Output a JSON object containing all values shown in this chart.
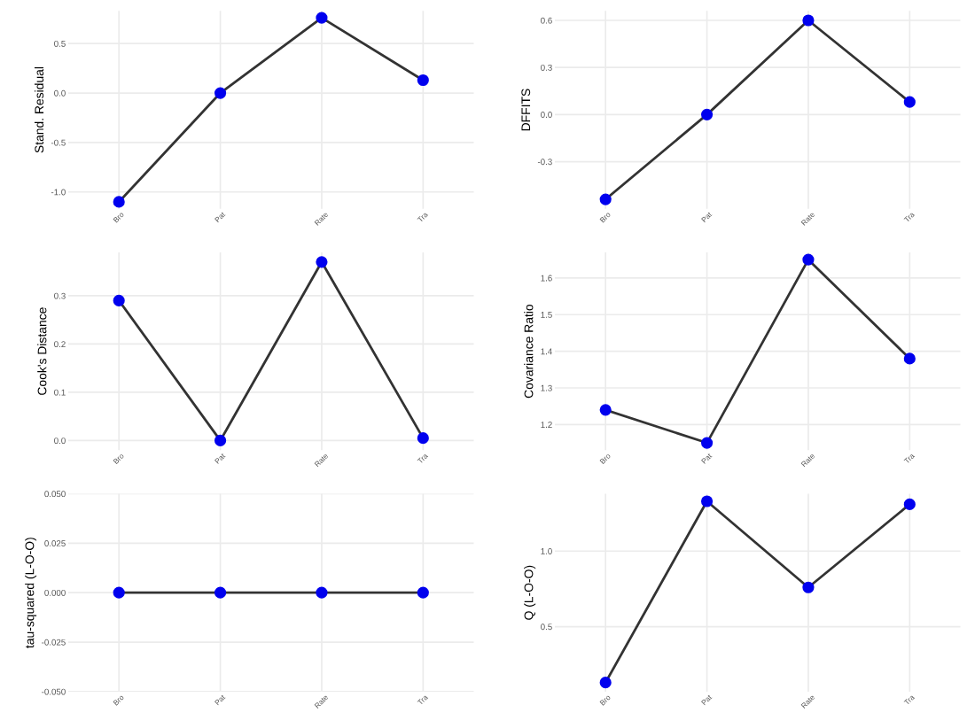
{
  "chart_data": [
    {
      "type": "line",
      "categories": [
        "Bro",
        "Pat",
        "Rate",
        "Tra"
      ],
      "ylabel": "Stand. Residual",
      "ylim": [
        -1.17,
        0.83
      ],
      "yticks": [
        {
          "value": -1.0,
          "label": "-1.0"
        },
        -0.5,
        {
          "value": 0.0,
          "label": "0.0"
        },
        0.5
      ],
      "grid": true,
      "marker": "circle",
      "series": [
        {
          "color": "#333333",
          "colors": [
            "#0000ee",
            "#0000ee",
            "#0000ee",
            "#0000ee"
          ],
          "values": [
            -1.1,
            0.0,
            0.76,
            0.13
          ]
        }
      ]
    },
    {
      "type": "line",
      "categories": [
        "Bro",
        "Pat",
        "Rate",
        "Tra"
      ],
      "ylabel": "DFFITS",
      "ylim": [
        -0.6,
        0.66
      ],
      "yticks": [
        -0.3,
        {
          "value": 0.0,
          "label": "0.0"
        },
        0.3,
        0.6
      ],
      "grid": true,
      "marker": "circle",
      "series": [
        {
          "color": "#333333",
          "colors": [
            "#0000ee",
            "#0000ee",
            "#0000ee",
            "#0000ee"
          ],
          "values": [
            -0.54,
            0.0,
            0.6,
            0.08
          ]
        }
      ]
    },
    {
      "type": "line",
      "categories": [
        "Bro",
        "Pat",
        "Rate",
        "Tra"
      ],
      "ylabel": "Cook's Distance",
      "ylim": [
        -0.02,
        0.39
      ],
      "yticks": [
        {
          "value": 0.0,
          "label": "0.0"
        },
        0.1,
        0.2,
        0.3
      ],
      "grid": true,
      "marker": "circle",
      "series": [
        {
          "color": "#333333",
          "colors": [
            "#0000ee",
            "#0000ee",
            "#0000ee",
            "#0000ee"
          ],
          "values": [
            0.29,
            0.0,
            0.37,
            0.005
          ]
        }
      ]
    },
    {
      "type": "line",
      "categories": [
        "Bro",
        "Pat",
        "Rate",
        "Tra"
      ],
      "ylabel": "Covariance Ratio",
      "ylim": [
        1.13,
        1.67
      ],
      "yticks": [
        1.2,
        1.3,
        1.4,
        1.5,
        1.6
      ],
      "grid": true,
      "marker": "circle",
      "series": [
        {
          "color": "#333333",
          "colors": [
            "#0000ee",
            "#0000ee",
            "#0000ee",
            "#0000ee"
          ],
          "values": [
            1.24,
            1.15,
            1.65,
            1.38
          ]
        }
      ]
    },
    {
      "type": "line",
      "categories": [
        "Bro",
        "Pat",
        "Rate",
        "Tra"
      ],
      "ylabel": "tau-squared (L-O-O)",
      "ylim": [
        -0.05,
        0.05
      ],
      "yticks": [
        {
          "value": -0.05,
          "label": "-0.050"
        },
        -0.025,
        {
          "value": 0.0,
          "label": "0.000"
        },
        0.025,
        {
          "value": 0.05,
          "label": "0.050"
        }
      ],
      "grid": true,
      "marker": "circle",
      "series": [
        {
          "color": "#333333",
          "colors": [
            "#0000ee",
            "#0000ee",
            "#0000ee",
            "#0000ee"
          ],
          "values": [
            0.0,
            0.0,
            0.0,
            0.0
          ]
        }
      ]
    },
    {
      "type": "line",
      "categories": [
        "Bro",
        "Pat",
        "Rate",
        "Tra"
      ],
      "ylabel": "Q (L-O-O)",
      "ylim": [
        0.07,
        1.38
      ],
      "yticks": [
        0.5,
        {
          "value": 1.0,
          "label": "1.0"
        }
      ],
      "grid": true,
      "marker": "circle",
      "series": [
        {
          "color": "#333333",
          "colors": [
            "#0000ee",
            "#0000ee",
            "#0000ee",
            "#0000ee"
          ],
          "values": [
            0.13,
            1.33,
            0.76,
            1.31
          ]
        }
      ]
    }
  ]
}
